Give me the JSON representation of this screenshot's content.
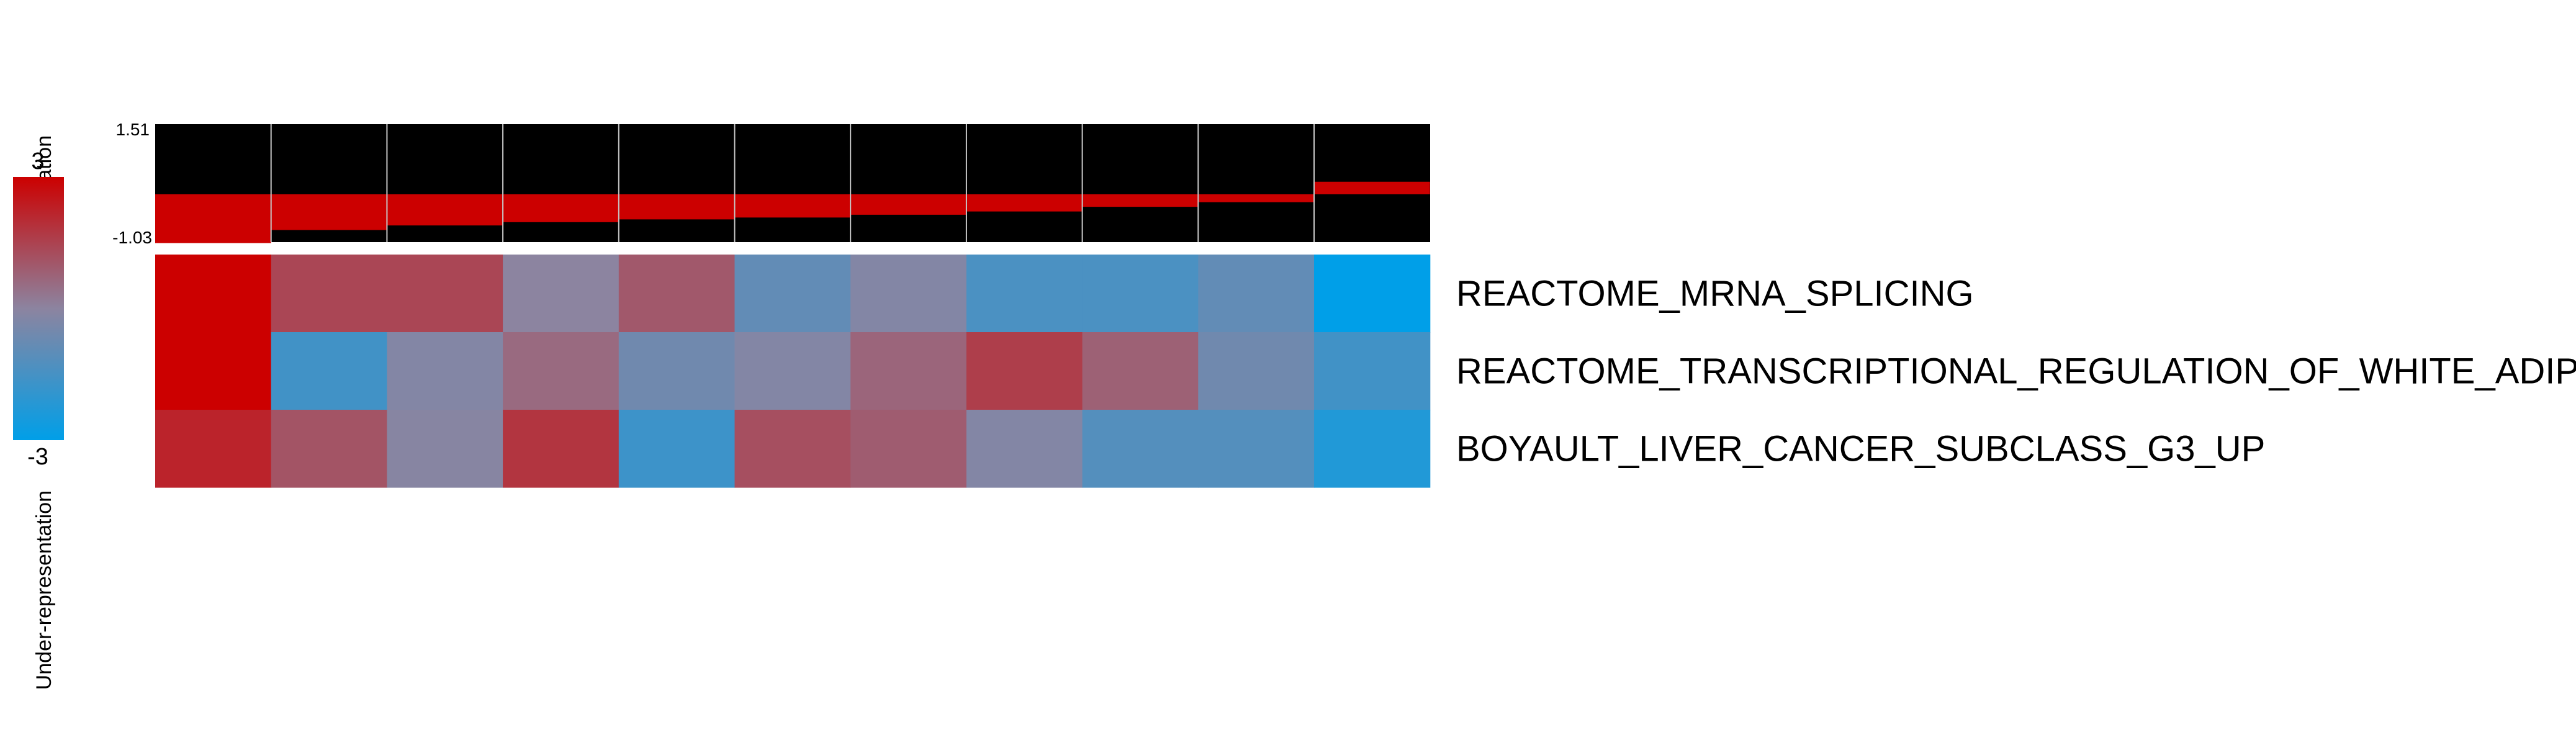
{
  "chart_data": {
    "type": "heatmap",
    "legend": {
      "max_label": "3",
      "min_label": "-3",
      "top_text": "Over-representation",
      "bottom_text": "Under-representation",
      "high_color": "#cc0000",
      "mid_color": "#8c84a0",
      "low_color": "#009fe8"
    },
    "summary": {
      "ymax_label": "1.51",
      "ymin_label": "-1.03",
      "ylim": [
        -1.03,
        1.51
      ],
      "values": [
        -1.03,
        -0.75,
        -0.65,
        -0.58,
        -0.52,
        -0.48,
        -0.42,
        -0.35,
        -0.25,
        -0.15,
        0.25
      ],
      "positive_color": "#cc0000",
      "negative_color": "#cc0000",
      "line_color": "#cc0000",
      "background_color": "#000000"
    },
    "rows": [
      "REACTOME_MRNA_SPLICING",
      "REACTOME_TRANSCRIPTIONAL_REGULATION_OF_WHITE_ADIPOCYTE_DIFFERENTIATION",
      "BOYAULT_LIVER_CANCER_SUBCLASS_G3_UP"
    ],
    "zlim": [
      -3,
      3
    ],
    "values": [
      [
        3.0,
        1.4,
        1.4,
        0.0,
        1.0,
        -0.9,
        -0.2,
        -1.4,
        -1.4,
        -0.9,
        -3.0
      ],
      [
        3.0,
        -1.6,
        -0.2,
        0.6,
        -0.6,
        -0.2,
        0.7,
        1.6,
        0.8,
        -0.6,
        -1.6
      ],
      [
        2.2,
        1.1,
        -0.1,
        1.8,
        -1.7,
        1.2,
        0.9,
        -0.2,
        -1.2,
        -1.2,
        -2.3
      ]
    ]
  }
}
